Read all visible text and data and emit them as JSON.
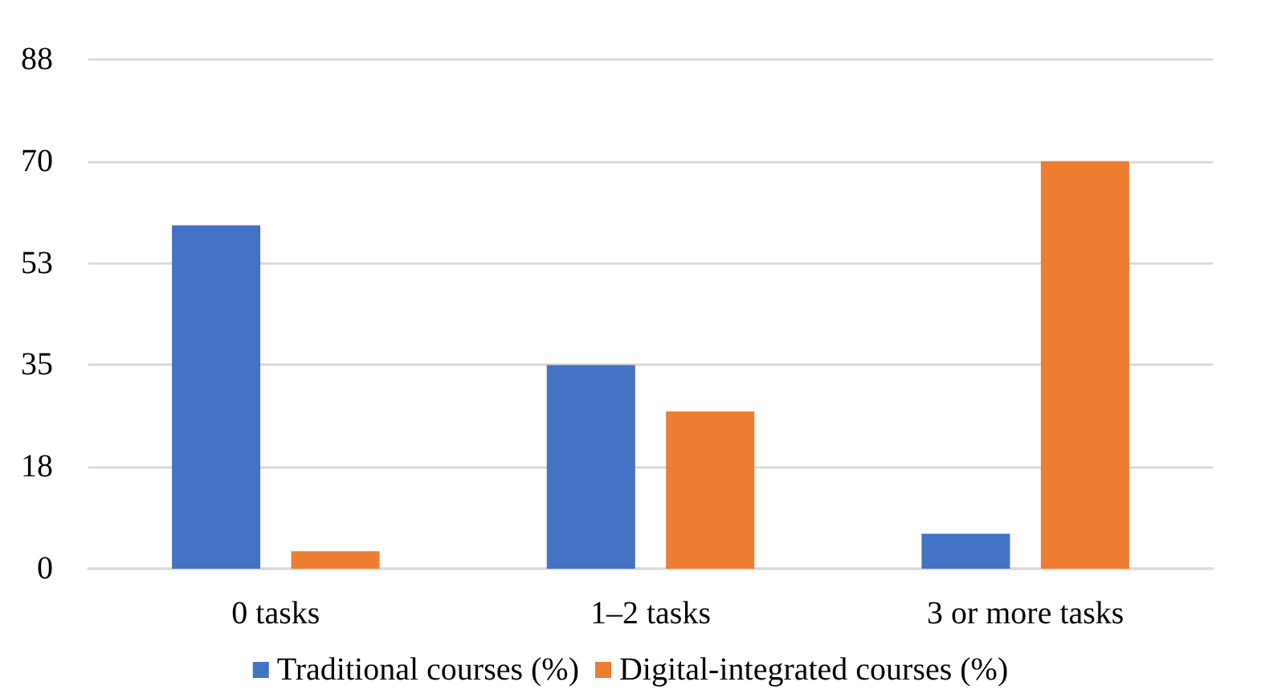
{
  "chart_data": {
    "type": "bar",
    "categories": [
      "0 tasks",
      "1–2 tasks",
      "3 or more tasks"
    ],
    "series": [
      {
        "name": "Traditional courses (%)",
        "color": "#4472c4",
        "values": [
          59,
          35,
          6
        ]
      },
      {
        "name": "Digital-integrated courses (%)",
        "color": "#ed7d31",
        "values": [
          3,
          27,
          70
        ]
      }
    ],
    "ylim": [
      0,
      87.5
    ],
    "yticks": [
      0,
      {
        "value": 17.5,
        "label": "18"
      },
      35,
      {
        "value": 52.5,
        "label": "53"
      },
      70,
      {
        "value": 87.5,
        "label": "88"
      }
    ],
    "grid": "y",
    "legend": "bottom"
  }
}
